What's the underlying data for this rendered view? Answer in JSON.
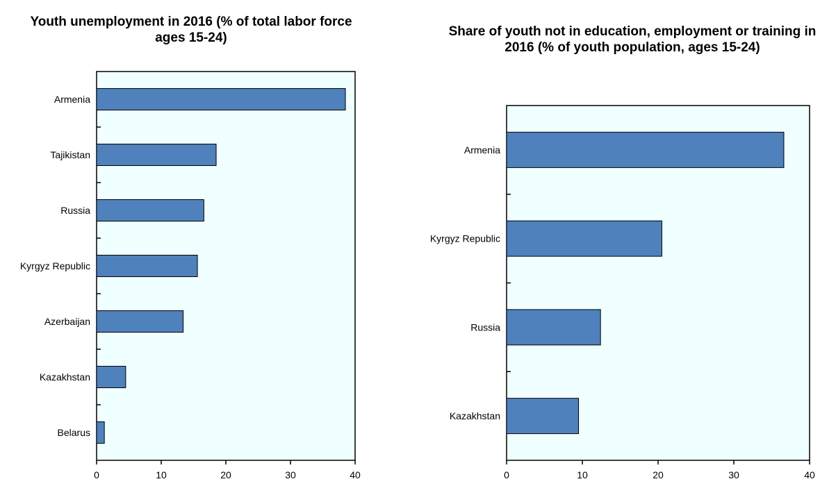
{
  "chart_data": [
    {
      "type": "bar",
      "orientation": "horizontal",
      "title": "Youth unemployment in 2016 (% of total labor force ages 15-24)",
      "categories": [
        "Armenia",
        "Tajikistan",
        "Russia",
        "Kyrgyz Republic",
        "Azerbaijan",
        "Kazakhstan",
        "Belarus"
      ],
      "values": [
        38.5,
        18.5,
        16.6,
        15.6,
        13.4,
        4.5,
        1.2
      ],
      "xlim": [
        0,
        40
      ],
      "xticks": [
        0,
        10,
        20,
        30,
        40
      ],
      "bar_color": "#4F81BD",
      "plot_background": "#F0FFFF",
      "grid": false
    },
    {
      "type": "bar",
      "orientation": "horizontal",
      "title": "Share of youth not in education, employment or training in 2016 (% of youth population, ages 15-24)",
      "categories": [
        "Armenia",
        "Kyrgyz Republic",
        "Russia",
        "Kazakhstan"
      ],
      "values": [
        36.6,
        20.5,
        12.4,
        9.5
      ],
      "xlim": [
        0,
        40
      ],
      "xticks": [
        0,
        10,
        20,
        30,
        40
      ],
      "bar_color": "#4F81BD",
      "plot_background": "#F0FFFF",
      "grid": false
    }
  ]
}
